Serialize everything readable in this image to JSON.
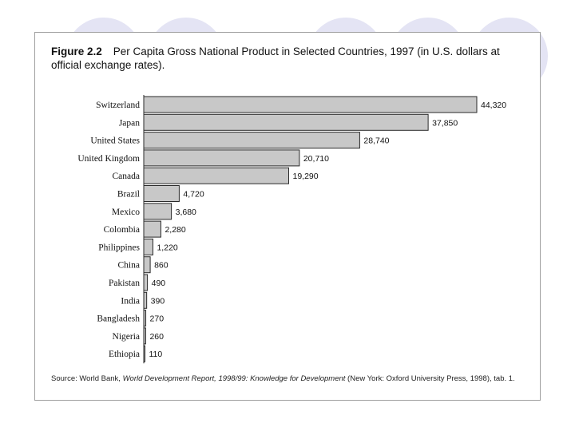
{
  "figure": {
    "label": "Figure 2.2",
    "title": "Per Capita Gross National Product in Selected Countries, 1997 (in U.S. dollars at official exchange rates).",
    "source_prefix": "Source: World Bank, ",
    "source_title": "World Development Report, 1998/99: Knowledge for Development",
    "source_suffix": " (New York: Oxford University Press, 1998), tab. 1."
  },
  "colors": {
    "bar_fill": "#c8c8c8",
    "bar_stroke": "#2a2a2a",
    "background_circle": "#e4e4f4"
  },
  "chart_data": {
    "type": "bar",
    "orientation": "horizontal",
    "title": "Per Capita Gross National Product in Selected Countries, 1997 (in U.S. dollars at official exchange rates).",
    "xlabel": "",
    "ylabel": "",
    "xlim": [
      0,
      44320
    ],
    "categories": [
      "Switzerland",
      "Japan",
      "United States",
      "United Kingdom",
      "Canada",
      "Brazil",
      "Mexico",
      "Colombia",
      "Philippines",
      "China",
      "Pakistan",
      "India",
      "Bangladesh",
      "Nigeria",
      "Ethiopia"
    ],
    "values": [
      44320,
      37850,
      28740,
      20710,
      19290,
      4720,
      3680,
      2280,
      1220,
      860,
      490,
      390,
      270,
      260,
      110
    ],
    "value_labels": [
      "44,320",
      "37,850",
      "28,740",
      "20,710",
      "19,290",
      "4,720",
      "3,680",
      "2,280",
      "1,220",
      "860",
      "490",
      "390",
      "270",
      "260",
      "110"
    ],
    "grid": false,
    "legend": "none"
  }
}
